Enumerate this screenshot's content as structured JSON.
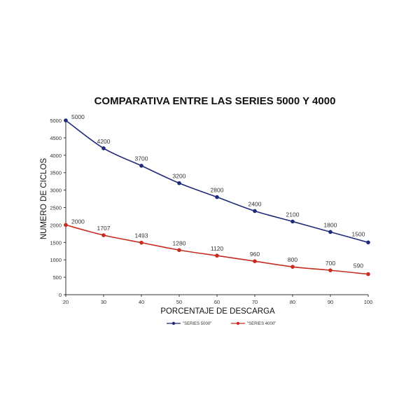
{
  "chart_data": {
    "type": "line",
    "title": "COMPARATIVA ENTRE LAS SERIES 5000 Y 4000",
    "xlabel": "PORCENTAJE DE DESCARGA",
    "ylabel": "NUMERO DE CICLOS",
    "x": [
      20,
      30,
      40,
      50,
      60,
      70,
      80,
      90,
      100
    ],
    "xlim": [
      20,
      100
    ],
    "ylim": [
      0,
      5000
    ],
    "yticks": [
      0,
      500,
      1000,
      1500,
      2000,
      2500,
      3000,
      3500,
      4000,
      4500,
      5000
    ],
    "grid": false,
    "legend_position": "bottom",
    "series": [
      {
        "name": "\"SERIES 5000\"",
        "color": "#1f2a78",
        "values": [
          5000,
          4200,
          3700,
          3200,
          2800,
          2400,
          2100,
          1800,
          1500
        ]
      },
      {
        "name": "\"SERIES 4000\"",
        "color": "#c62d1f",
        "values": [
          2000,
          1707,
          1493,
          1280,
          1120,
          960,
          800,
          700,
          590
        ]
      }
    ]
  }
}
